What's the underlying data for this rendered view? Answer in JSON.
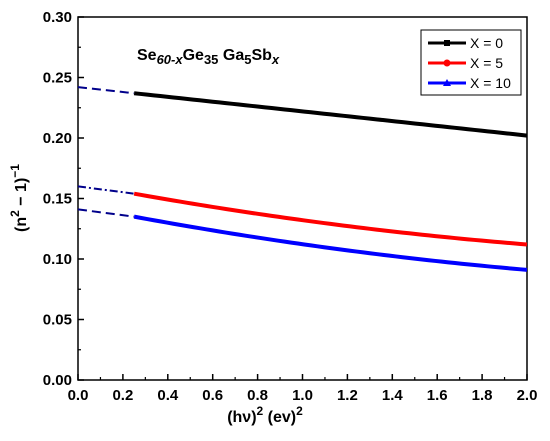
{
  "chart_data": {
    "type": "line",
    "xlabel": {
      "base": "(hν)",
      "sup": "2",
      "unit": " (ev)",
      "unit_sup": "2"
    },
    "ylabel": {
      "base": "(n",
      "sup1": "2",
      "mid": " − 1)",
      "sup2": "−1"
    },
    "xlim": [
      0.0,
      2.0
    ],
    "ylim": [
      0.0,
      0.3
    ],
    "xticks": [
      "0.0",
      "0.2",
      "0.4",
      "0.6",
      "0.8",
      "1.0",
      "1.2",
      "1.4",
      "1.6",
      "1.8",
      "2.0"
    ],
    "yticks": [
      "0.00",
      "0.05",
      "0.10",
      "0.15",
      "0.20",
      "0.25",
      "0.30"
    ],
    "annotation": {
      "parts": [
        {
          "t": "Se",
          "sub": "60-x"
        },
        {
          "t": "Ge",
          "sub": "35"
        },
        {
          "t": " Ga",
          "sub": "5"
        },
        {
          "t": "Sb",
          "sub": "x"
        }
      ]
    },
    "legend_position": "top-right",
    "series": [
      {
        "name": "X = 0",
        "color": "#000000",
        "marker": "square",
        "x_start": 0.25,
        "x_end": 2.0,
        "y_start": 0.237,
        "y_end": 0.202,
        "extrap_y0": 0.242,
        "extrap_style": "dashed"
      },
      {
        "name": "X = 5",
        "color": "#ff0000",
        "marker": "circle",
        "x_start": 0.25,
        "x_end": 2.0,
        "y_start": 0.154,
        "y_end": 0.112,
        "extrap_y0": 0.16,
        "extrap_style": "dashdot"
      },
      {
        "name": "X = 10",
        "color": "#0000ff",
        "marker": "triangle",
        "x_start": 0.25,
        "x_end": 2.0,
        "y_start": 0.135,
        "y_end": 0.091,
        "extrap_y0": 0.141,
        "extrap_style": "dashed"
      }
    ],
    "extrapolation_color": "#00008b"
  }
}
